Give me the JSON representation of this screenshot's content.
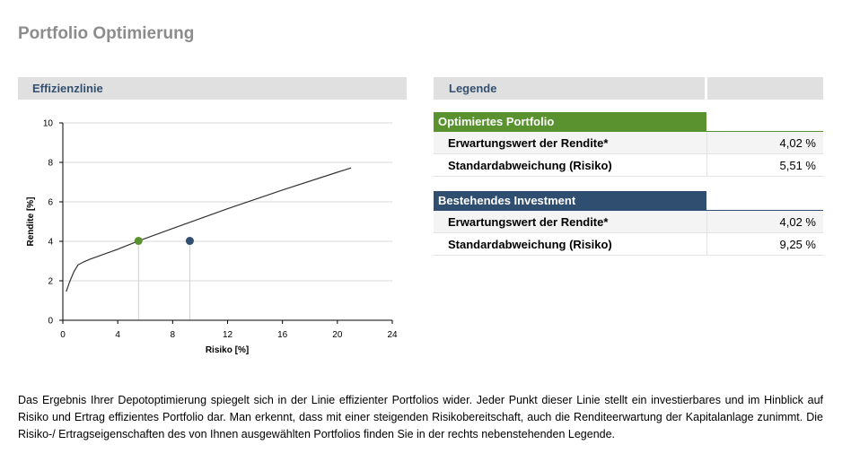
{
  "page": {
    "title": "Portfolio Optimierung"
  },
  "chart_panel": {
    "header": "Effizienzlinie"
  },
  "legend_panel": {
    "header": "Legende",
    "groups": [
      {
        "title": "Optimiertes Portfolio",
        "color": "#5a9230",
        "rows": [
          {
            "label": "Erwartungswert der Rendite*",
            "value": "4,02 %"
          },
          {
            "label": "Standardabweichung (Risiko)",
            "value": "5,51 %"
          }
        ]
      },
      {
        "title": "Bestehendes Investment",
        "color": "#2f4e70",
        "rows": [
          {
            "label": "Erwartungswert der Rendite*",
            "value": "4,02 %"
          },
          {
            "label": "Standardabweichung (Risiko)",
            "value": "9,25 %"
          }
        ]
      }
    ]
  },
  "chart_data": {
    "type": "line",
    "xlabel": "Risiko [%]",
    "ylabel": "Rendite [%]",
    "xlim": [
      0,
      24
    ],
    "ylim": [
      0,
      10
    ],
    "xticks": [
      0,
      4,
      8,
      12,
      16,
      20,
      24
    ],
    "yticks": [
      0,
      2,
      4,
      6,
      8,
      10
    ],
    "grid": "horizontal",
    "series": [
      {
        "type": "line",
        "color": "#333333",
        "x": [
          0.25,
          0.5,
          0.8,
          1.1,
          1.5,
          2,
          3,
          4,
          5.51,
          8,
          12,
          16,
          20,
          21
        ],
        "y": [
          1.45,
          1.95,
          2.45,
          2.8,
          2.95,
          3.1,
          3.35,
          3.6,
          4.02,
          4.65,
          5.65,
          6.6,
          7.5,
          7.72
        ]
      }
    ],
    "points": [
      {
        "name": "Optimiertes Portfolio",
        "x": 5.51,
        "y": 4.02,
        "color": "#5a9230"
      },
      {
        "name": "Bestehendes Investment",
        "x": 9.25,
        "y": 4.02,
        "color": "#2f4e70"
      }
    ]
  },
  "description": "Das Ergebnis Ihrer Depotoptimierung spiegelt sich in der Linie effizienter Portfolios wider. Jeder Punkt dieser Linie stellt ein investierbares und im Hinblick auf Risiko und Ertrag effizientes Portfolio dar. Man erkennt, dass mit einer steigenden Risikobereitschaft, auch die Renditeerwartung der Kapitalanlage zunimmt. Die Risiko-/ Ertragseigenschaften des von Ihnen ausgewählten Portfolios finden Sie in der rechts nebenstehenden Legende."
}
